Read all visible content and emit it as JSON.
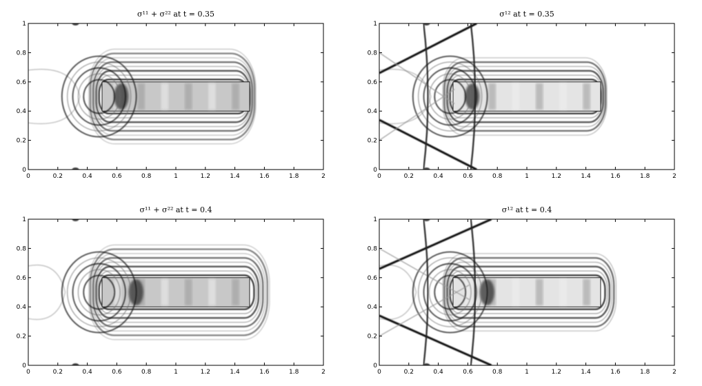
{
  "chart_data": [
    {
      "type": "heatmap",
      "title": "σ¹¹ + σ²² at t = 0.35",
      "quantity": "sum",
      "t": 0.35,
      "xlim": [
        0,
        2
      ],
      "ylim": [
        0,
        1
      ],
      "xticks": [
        "0",
        "0.2",
        "0.4",
        "0.6",
        "0.8",
        "1",
        "1.2",
        "1.4",
        "1.6",
        "1.8",
        "2"
      ],
      "yticks": [
        "0",
        "0.2",
        "0.4",
        "0.6",
        "0.8",
        "1"
      ],
      "colormap": "grayscale",
      "grid": false,
      "inclusion": {
        "x": [
          0.5,
          1.5
        ],
        "y": [
          0.4,
          0.6
        ]
      },
      "vertical_front_x": 0.66,
      "wave_reach_right": 1.55,
      "wave_reach_left": 0.3
    },
    {
      "type": "heatmap",
      "title": "σ¹² at t = 0.35",
      "quantity": "shear",
      "t": 0.35,
      "xlim": [
        0,
        2
      ],
      "ylim": [
        0,
        1
      ],
      "xticks": [
        "0",
        "0.2",
        "0.4",
        "0.6",
        "0.8",
        "1",
        "1.2",
        "1.4",
        "1.6",
        "1.8",
        "2"
      ],
      "yticks": [
        "0",
        "0.2",
        "0.4",
        "0.6",
        "0.8",
        "1"
      ],
      "colormap": "grayscale",
      "grid": false,
      "inclusion": {
        "x": [
          0.5,
          1.5
        ],
        "y": [
          0.4,
          0.6
        ]
      },
      "vertical_front_x": 0.66,
      "wave_reach_right": 1.55,
      "wave_reach_left": 0.3
    },
    {
      "type": "heatmap",
      "title": "σ¹¹ + σ²² at t = 0.4",
      "quantity": "sum",
      "t": 0.4,
      "xlim": [
        0,
        2
      ],
      "ylim": [
        0,
        1
      ],
      "xticks": [
        "0",
        "0.2",
        "0.4",
        "0.6",
        "0.8",
        "1",
        "1.2",
        "1.4",
        "1.6",
        "1.8",
        "2"
      ],
      "yticks": [
        "0",
        "0.2",
        "0.4",
        "0.6",
        "0.8",
        "1"
      ],
      "colormap": "grayscale",
      "grid": false,
      "inclusion": {
        "x": [
          0.5,
          1.5
        ],
        "y": [
          0.4,
          0.6
        ]
      },
      "vertical_front_x": 0.76,
      "wave_reach_right": 1.65,
      "wave_reach_left": 0.2
    },
    {
      "type": "heatmap",
      "title": "σ¹² at t = 0.4",
      "quantity": "shear",
      "t": 0.4,
      "xlim": [
        0,
        2
      ],
      "ylim": [
        0,
        1
      ],
      "xticks": [
        "0",
        "0.2",
        "0.4",
        "0.6",
        "0.8",
        "1",
        "1.2",
        "1.4",
        "1.6",
        "1.8",
        "2"
      ],
      "yticks": [
        "0",
        "0.2",
        "0.4",
        "0.6",
        "0.8",
        "1"
      ],
      "colormap": "grayscale",
      "grid": false,
      "inclusion": {
        "x": [
          0.5,
          1.5
        ],
        "y": [
          0.4,
          0.6
        ]
      },
      "vertical_front_x": 0.76,
      "wave_reach_right": 1.65,
      "wave_reach_left": 0.2
    }
  ]
}
